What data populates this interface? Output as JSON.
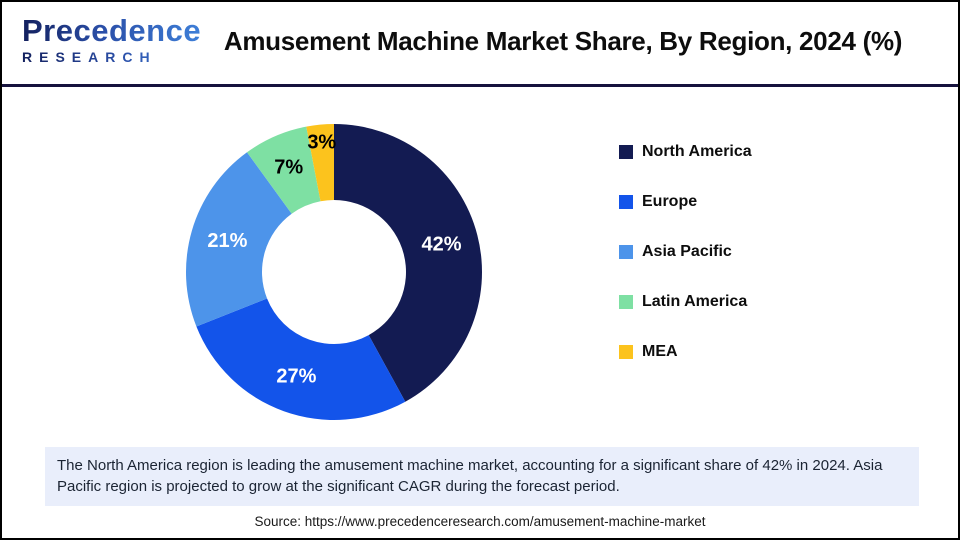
{
  "header": {
    "logo_line1": "Precedence",
    "logo_line2": "RESEARCH",
    "title": "Amusement Machine Market Share, By Region, 2024 (%)"
  },
  "chart_data": {
    "type": "pie",
    "subtype": "donut",
    "title": "Amusement Machine Market Share, By Region, 2024 (%)",
    "categories": [
      "North America",
      "Europe",
      "Asia Pacific",
      "Latin America",
      "MEA"
    ],
    "values": [
      42,
      27,
      21,
      7,
      3
    ],
    "labels": [
      "42%",
      "27%",
      "21%",
      "7%",
      "3%"
    ],
    "colors": [
      "#131b52",
      "#1354ea",
      "#4d94ea",
      "#7ee0a3",
      "#fcc31d"
    ],
    "label_colors": [
      "#ffffff",
      "#ffffff",
      "#ffffff",
      "#000000",
      "#000000"
    ],
    "label_radii": [
      111,
      111,
      111,
      114,
      130
    ],
    "start_angle_deg": 0,
    "direction": "clockwise",
    "outer_radius": 148,
    "inner_radius": 72,
    "legend_position": "right",
    "legend_marker": "square"
  },
  "note": {
    "text": "The North America region is leading the amusement machine market, accounting for a significant share of 42% in 2024. Asia Pacific region is projected to grow at the significant CAGR during the forecast period."
  },
  "footer": {
    "source": "Source: https://www.precedenceresearch.com/amusement-machine-market"
  },
  "style_colors": {
    "header_divider": "#16123d",
    "note_background": "#e9eefb",
    "logo_navy": "#13205e",
    "logo_blue": "#3e7fd8"
  }
}
